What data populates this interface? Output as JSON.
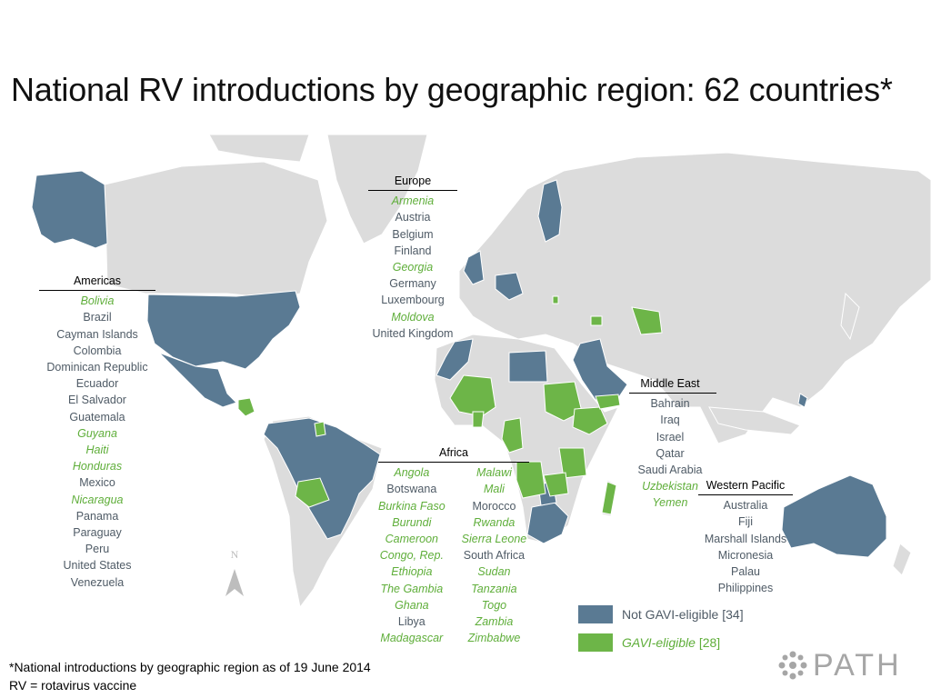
{
  "title": "National RV introductions by geographic region: 62 countries*",
  "colors": {
    "not_gavi": "#5a7a93",
    "gavi": "#6db548",
    "land": "#dcdcdc",
    "ocean": "#ffffff",
    "legend_gavi_text": "#5fae3a"
  },
  "map_labels": {
    "north": "N"
  },
  "regions": {
    "europe": {
      "title": "Europe",
      "countries": [
        {
          "name": "Armenia",
          "gavi": true
        },
        {
          "name": "Austria",
          "gavi": false
        },
        {
          "name": "Belgium",
          "gavi": false
        },
        {
          "name": "Finland",
          "gavi": false
        },
        {
          "name": "Georgia",
          "gavi": true
        },
        {
          "name": "Germany",
          "gavi": false
        },
        {
          "name": "Luxembourg",
          "gavi": false
        },
        {
          "name": "Moldova",
          "gavi": true
        },
        {
          "name": "United Kingdom",
          "gavi": false
        }
      ]
    },
    "americas": {
      "title": "Americas",
      "countries": [
        {
          "name": "Bolivia",
          "gavi": true
        },
        {
          "name": "Brazil",
          "gavi": false
        },
        {
          "name": "Cayman Islands",
          "gavi": false
        },
        {
          "name": "Colombia",
          "gavi": false
        },
        {
          "name": "Dominican Republic",
          "gavi": false
        },
        {
          "name": "Ecuador",
          "gavi": false
        },
        {
          "name": "El Salvador",
          "gavi": false
        },
        {
          "name": "Guatemala",
          "gavi": false
        },
        {
          "name": "Guyana",
          "gavi": true
        },
        {
          "name": "Haiti",
          "gavi": true
        },
        {
          "name": "Honduras",
          "gavi": true
        },
        {
          "name": "Mexico",
          "gavi": false
        },
        {
          "name": "Nicaragua",
          "gavi": true
        },
        {
          "name": "Panama",
          "gavi": false
        },
        {
          "name": "Paraguay",
          "gavi": false
        },
        {
          "name": "Peru",
          "gavi": false
        },
        {
          "name": "United States",
          "gavi": false
        },
        {
          "name": "Venezuela",
          "gavi": false
        }
      ]
    },
    "middle_east": {
      "title": "Middle East",
      "countries": [
        {
          "name": "Bahrain",
          "gavi": false
        },
        {
          "name": "Iraq",
          "gavi": false
        },
        {
          "name": "Israel",
          "gavi": false
        },
        {
          "name": "Qatar",
          "gavi": false
        },
        {
          "name": "Saudi Arabia",
          "gavi": false
        },
        {
          "name": "Uzbekistan",
          "gavi": true
        },
        {
          "name": "Yemen",
          "gavi": true
        }
      ]
    },
    "western_pacific": {
      "title": "Western Pacific",
      "countries": [
        {
          "name": "Australia",
          "gavi": false
        },
        {
          "name": "Fiji",
          "gavi": false
        },
        {
          "name": "Marshall Islands",
          "gavi": false
        },
        {
          "name": "Micronesia",
          "gavi": false
        },
        {
          "name": "Palau",
          "gavi": false
        },
        {
          "name": "Philippines",
          "gavi": false
        }
      ]
    },
    "africa": {
      "title": "Africa",
      "col1": [
        {
          "name": "Angola",
          "gavi": true
        },
        {
          "name": "Botswana",
          "gavi": false
        },
        {
          "name": "Burkina Faso",
          "gavi": true
        },
        {
          "name": "Burundi",
          "gavi": true
        },
        {
          "name": "Cameroon",
          "gavi": true
        },
        {
          "name": "Congo, Rep.",
          "gavi": true
        },
        {
          "name": "Ethiopia",
          "gavi": true
        },
        {
          "name": "The Gambia",
          "gavi": true
        },
        {
          "name": "Ghana",
          "gavi": true
        },
        {
          "name": "Libya",
          "gavi": false
        },
        {
          "name": "Madagascar",
          "gavi": true
        }
      ],
      "col2": [
        {
          "name": "Malawi",
          "gavi": true
        },
        {
          "name": "Mali",
          "gavi": true
        },
        {
          "name": "Morocco",
          "gavi": false
        },
        {
          "name": "Rwanda",
          "gavi": true
        },
        {
          "name": "Sierra Leone",
          "gavi": true
        },
        {
          "name": "South Africa",
          "gavi": false
        },
        {
          "name": "Sudan",
          "gavi": true
        },
        {
          "name": "Tanzania",
          "gavi": true
        },
        {
          "name": "Togo",
          "gavi": true
        },
        {
          "name": "Zambia",
          "gavi": true
        },
        {
          "name": "Zimbabwe",
          "gavi": true
        }
      ]
    }
  },
  "legend": {
    "not_gavi_label": "Not GAVI-eligible",
    "not_gavi_count": "[34]",
    "gavi_label": "GAVI-eligible",
    "gavi_count": "[28]"
  },
  "footnote": {
    "line1": "*National introductions by geographic region as of 19 June 2014",
    "line2": "RV = rotavirus vaccine"
  },
  "logo": {
    "text": "PATH"
  }
}
